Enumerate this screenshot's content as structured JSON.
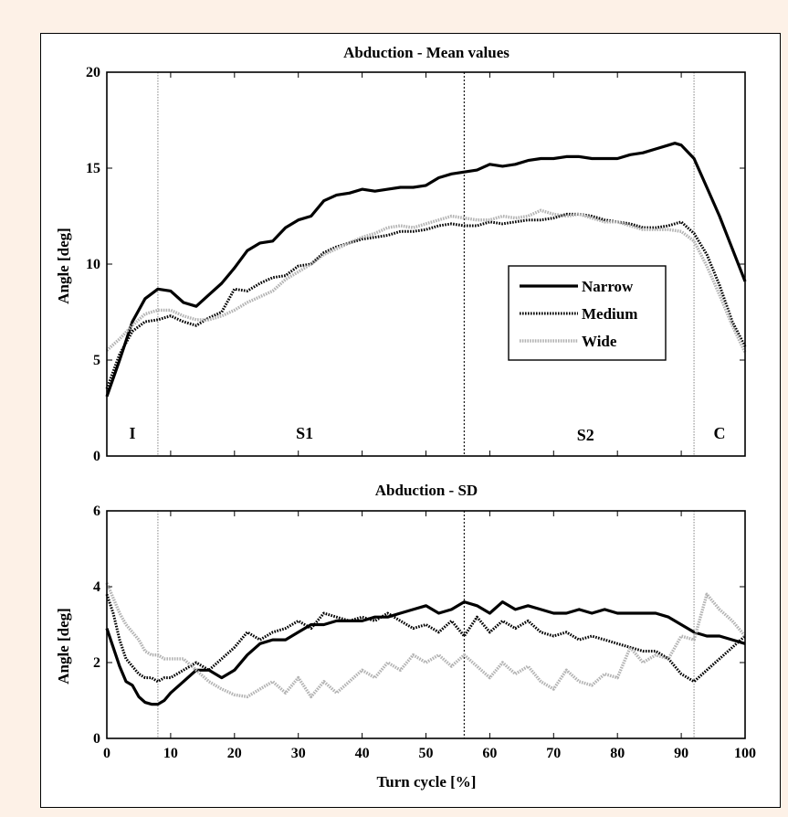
{
  "colors": {
    "page_bg": "#fdf1e7",
    "narrow": "#000000",
    "medium": "#000000",
    "wide": "#b3b3b3"
  },
  "chart_data": [
    {
      "type": "line",
      "title": "Abduction - Mean values",
      "xlabel": "",
      "ylabel": "Angle [deg]",
      "xlim": [
        0,
        100
      ],
      "ylim": [
        0,
        20
      ],
      "xticks": [
        0,
        10,
        20,
        30,
        40,
        50,
        60,
        70,
        80,
        90,
        100
      ],
      "yticks": [
        0,
        5,
        10,
        15,
        20
      ],
      "vlines": [
        8,
        56,
        92
      ],
      "phases": [
        {
          "label": "I",
          "x": 4,
          "y": 1.2
        },
        {
          "label": "S1",
          "x": 31,
          "y": 1.2
        },
        {
          "label": "S2",
          "x": 75,
          "y": 1.1
        },
        {
          "label": "C",
          "x": 96,
          "y": 1.2
        }
      ],
      "legend": "right",
      "series": [
        {
          "name": "Narrow",
          "style": "solid",
          "x": [
            0,
            2,
            4,
            6,
            8,
            10,
            12,
            14,
            16,
            18,
            20,
            22,
            24,
            26,
            28,
            30,
            32,
            34,
            36,
            38,
            40,
            42,
            44,
            46,
            48,
            50,
            52,
            54,
            56,
            58,
            60,
            62,
            64,
            66,
            68,
            70,
            72,
            74,
            76,
            78,
            80,
            82,
            84,
            86,
            88,
            89,
            90,
            92,
            94,
            96,
            98,
            100
          ],
          "values": [
            3.1,
            5.0,
            7.0,
            8.2,
            8.7,
            8.6,
            8.0,
            7.8,
            8.4,
            9.0,
            9.8,
            10.7,
            11.1,
            11.2,
            11.9,
            12.3,
            12.5,
            13.3,
            13.6,
            13.7,
            13.9,
            13.8,
            13.9,
            14.0,
            14.0,
            14.1,
            14.5,
            14.7,
            14.8,
            14.9,
            15.2,
            15.1,
            15.2,
            15.4,
            15.5,
            15.5,
            15.6,
            15.6,
            15.5,
            15.5,
            15.5,
            15.7,
            15.8,
            16.0,
            16.2,
            16.3,
            16.2,
            15.5,
            14.0,
            12.5,
            10.8,
            9.1
          ]
        },
        {
          "name": "Medium",
          "style": "dotted",
          "x": [
            0,
            2,
            4,
            6,
            8,
            10,
            12,
            14,
            16,
            18,
            20,
            22,
            24,
            26,
            28,
            30,
            32,
            34,
            36,
            38,
            40,
            42,
            44,
            46,
            48,
            50,
            52,
            54,
            56,
            58,
            60,
            62,
            64,
            66,
            68,
            70,
            72,
            74,
            76,
            78,
            80,
            82,
            84,
            86,
            88,
            90,
            92,
            94,
            96,
            98,
            100
          ],
          "values": [
            3.5,
            5.3,
            6.5,
            7.0,
            7.1,
            7.3,
            7.0,
            6.8,
            7.2,
            7.5,
            8.7,
            8.6,
            9.0,
            9.3,
            9.4,
            9.9,
            10.0,
            10.6,
            10.9,
            11.1,
            11.3,
            11.4,
            11.5,
            11.7,
            11.7,
            11.8,
            12.0,
            12.1,
            12.0,
            12.0,
            12.2,
            12.1,
            12.2,
            12.3,
            12.3,
            12.4,
            12.6,
            12.6,
            12.5,
            12.3,
            12.2,
            12.1,
            11.9,
            11.9,
            12.0,
            12.2,
            11.6,
            10.5,
            8.9,
            7.0,
            5.7
          ]
        },
        {
          "name": "Wide",
          "style": "dotted",
          "x": [
            0,
            2,
            4,
            6,
            8,
            10,
            12,
            14,
            16,
            18,
            20,
            22,
            24,
            26,
            28,
            30,
            32,
            34,
            36,
            38,
            40,
            42,
            44,
            46,
            48,
            50,
            52,
            54,
            56,
            58,
            60,
            62,
            64,
            66,
            68,
            70,
            72,
            74,
            76,
            78,
            80,
            82,
            84,
            86,
            88,
            90,
            92,
            94,
            96,
            98,
            100
          ],
          "values": [
            5.5,
            6.1,
            6.8,
            7.4,
            7.6,
            7.6,
            7.3,
            7.1,
            7.1,
            7.3,
            7.6,
            8.0,
            8.3,
            8.6,
            9.2,
            9.6,
            10.0,
            10.5,
            10.8,
            11.1,
            11.4,
            11.6,
            11.9,
            12.0,
            11.9,
            12.1,
            12.3,
            12.5,
            12.4,
            12.3,
            12.3,
            12.5,
            12.4,
            12.5,
            12.8,
            12.6,
            12.5,
            12.6,
            12.4,
            12.2,
            12.2,
            12.0,
            11.8,
            11.8,
            11.8,
            11.7,
            11.2,
            9.9,
            8.4,
            6.8,
            5.4
          ]
        }
      ]
    },
    {
      "type": "line",
      "title": "Abduction - SD",
      "xlabel": "Turn cycle [%]",
      "ylabel": "Angle [deg]",
      "xlim": [
        0,
        100
      ],
      "ylim": [
        0,
        6
      ],
      "xticks": [
        0,
        10,
        20,
        30,
        40,
        50,
        60,
        70,
        80,
        90,
        100
      ],
      "yticks": [
        0,
        2,
        4,
        6
      ],
      "vlines": [
        8,
        56,
        92
      ],
      "series": [
        {
          "name": "Narrow",
          "style": "solid",
          "x": [
            0,
            1,
            2,
            3,
            4,
            5,
            6,
            7,
            8,
            9,
            10,
            12,
            14,
            16,
            18,
            20,
            22,
            24,
            26,
            28,
            30,
            32,
            34,
            36,
            38,
            40,
            42,
            44,
            46,
            48,
            50,
            52,
            54,
            56,
            58,
            60,
            62,
            64,
            66,
            68,
            70,
            72,
            74,
            76,
            78,
            80,
            82,
            84,
            86,
            88,
            90,
            92,
            94,
            96,
            98,
            100
          ],
          "values": [
            2.9,
            2.4,
            1.9,
            1.5,
            1.4,
            1.1,
            0.95,
            0.9,
            0.9,
            1.0,
            1.2,
            1.5,
            1.8,
            1.8,
            1.6,
            1.8,
            2.2,
            2.5,
            2.6,
            2.6,
            2.8,
            3.0,
            3.0,
            3.1,
            3.1,
            3.1,
            3.2,
            3.2,
            3.3,
            3.4,
            3.5,
            3.3,
            3.4,
            3.6,
            3.5,
            3.3,
            3.6,
            3.4,
            3.5,
            3.4,
            3.3,
            3.3,
            3.4,
            3.3,
            3.4,
            3.3,
            3.3,
            3.3,
            3.3,
            3.2,
            3.0,
            2.8,
            2.7,
            2.7,
            2.6,
            2.5
          ]
        },
        {
          "name": "Medium",
          "style": "dotted",
          "x": [
            0,
            1,
            2,
            3,
            4,
            5,
            6,
            7,
            8,
            9,
            10,
            12,
            14,
            16,
            18,
            20,
            22,
            24,
            26,
            28,
            30,
            32,
            34,
            36,
            38,
            40,
            42,
            44,
            46,
            48,
            50,
            52,
            54,
            56,
            58,
            60,
            62,
            64,
            66,
            68,
            70,
            72,
            74,
            76,
            78,
            80,
            82,
            84,
            86,
            88,
            90,
            92,
            94,
            96,
            98,
            100
          ],
          "values": [
            3.8,
            3.3,
            2.6,
            2.1,
            1.9,
            1.7,
            1.6,
            1.6,
            1.5,
            1.6,
            1.6,
            1.8,
            2.0,
            1.8,
            2.1,
            2.4,
            2.8,
            2.6,
            2.8,
            2.9,
            3.1,
            2.9,
            3.3,
            3.2,
            3.1,
            3.2,
            3.1,
            3.3,
            3.1,
            2.9,
            3.0,
            2.8,
            3.1,
            2.7,
            3.2,
            2.8,
            3.1,
            2.9,
            3.1,
            2.8,
            2.7,
            2.8,
            2.6,
            2.7,
            2.6,
            2.5,
            2.4,
            2.3,
            2.3,
            2.1,
            1.7,
            1.5,
            1.8,
            2.1,
            2.4,
            2.7
          ]
        },
        {
          "name": "Wide",
          "style": "dotted",
          "x": [
            0,
            1,
            2,
            3,
            4,
            5,
            6,
            7,
            8,
            9,
            10,
            12,
            14,
            16,
            18,
            20,
            22,
            24,
            26,
            28,
            30,
            32,
            34,
            36,
            38,
            40,
            42,
            44,
            46,
            48,
            50,
            52,
            54,
            56,
            58,
            60,
            62,
            64,
            66,
            68,
            70,
            72,
            74,
            76,
            78,
            80,
            82,
            84,
            86,
            88,
            90,
            92,
            94,
            96,
            98,
            100
          ],
          "values": [
            4.1,
            3.7,
            3.3,
            3.0,
            2.8,
            2.6,
            2.3,
            2.2,
            2.2,
            2.1,
            2.1,
            2.1,
            1.8,
            1.5,
            1.3,
            1.15,
            1.1,
            1.3,
            1.5,
            1.2,
            1.6,
            1.1,
            1.5,
            1.2,
            1.5,
            1.8,
            1.6,
            2.0,
            1.8,
            2.2,
            2.0,
            2.2,
            1.9,
            2.2,
            1.9,
            1.6,
            2.0,
            1.7,
            1.9,
            1.5,
            1.3,
            1.8,
            1.5,
            1.4,
            1.7,
            1.6,
            2.4,
            2.0,
            2.2,
            2.1,
            2.7,
            2.6,
            3.8,
            3.4,
            3.1,
            2.7
          ]
        }
      ]
    }
  ]
}
